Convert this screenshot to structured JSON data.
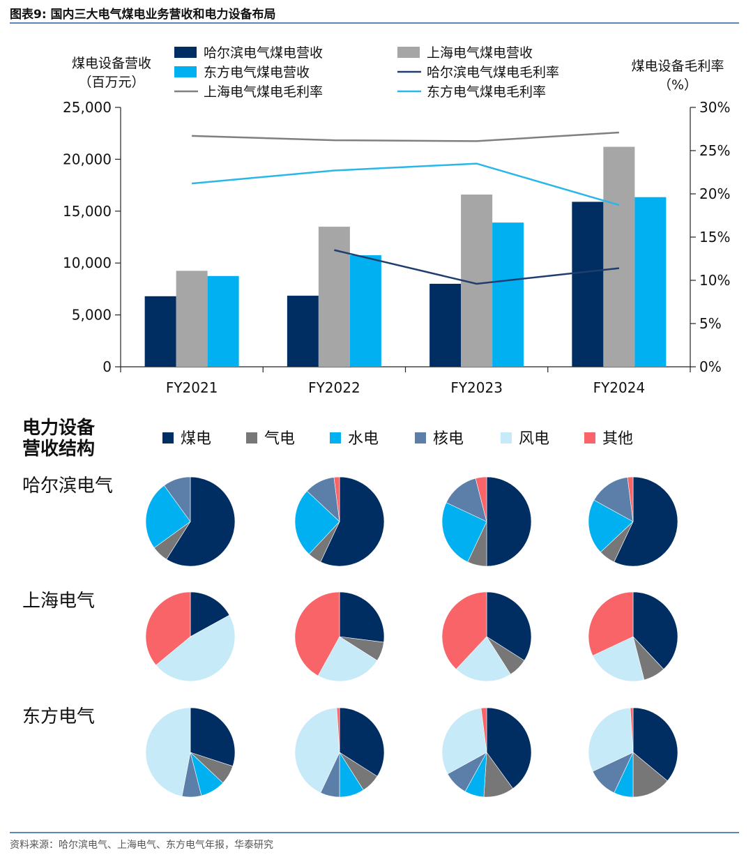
{
  "figure": {
    "title": "图表9:  国内三大电气煤电业务营收和电力设备布局",
    "source": "资料来源：哈尔滨电气、上海电气、东方电气年报，华泰研究"
  },
  "colors": {
    "harbin_rev": "#002d62",
    "shanghai_rev": "#a6a6a6",
    "dongfang_rev": "#00b0f0",
    "harbin_margin": "#1f3e6e",
    "shanghai_margin": "#7f7f7f",
    "dongfang_margin": "#29b6e8",
    "coal": "#002d62",
    "gas": "#777777",
    "hydro": "#00b0f0",
    "nuclear": "#5b7fa8",
    "wind": "#c7eaf8",
    "other": "#f86468"
  },
  "chart_data": [
    {
      "type": "bar",
      "left_axis_label": [
        "煤电设备营收",
        "（百万元）"
      ],
      "right_axis_label": [
        "煤电设备毛利率",
        "（%）"
      ],
      "categories": [
        "FY2021",
        "FY2022",
        "FY2023",
        "FY2024"
      ],
      "ylim": [
        0,
        25000
      ],
      "yticks": [
        0,
        5000,
        10000,
        15000,
        20000,
        25000
      ],
      "yticklabels": [
        "0",
        "5,000",
        "10,000",
        "15,000",
        "20,000",
        "25,000"
      ],
      "y2lim": [
        0,
        30
      ],
      "y2ticks": [
        0,
        5,
        10,
        15,
        20,
        25,
        30
      ],
      "y2ticklabels": [
        "0%",
        "5%",
        "10%",
        "15%",
        "20%",
        "25%",
        "30%"
      ],
      "grid": false,
      "legend_position": "top",
      "bar_series": [
        {
          "name": "哈尔滨电气煤电营收",
          "color_key": "harbin_rev",
          "values": [
            6800,
            6850,
            8000,
            15900
          ]
        },
        {
          "name": "上海电气煤电营收",
          "color_key": "shanghai_rev",
          "values": [
            9250,
            13500,
            16600,
            21200
          ]
        },
        {
          "name": "东方电气煤电营收",
          "color_key": "dongfang_rev",
          "values": [
            8750,
            10750,
            13900,
            16350
          ]
        }
      ],
      "line_series": [
        {
          "name": "哈尔滨电气煤电毛利率",
          "color_key": "harbin_margin",
          "values": [
            null,
            13.5,
            9.6,
            11.4
          ]
        },
        {
          "name": "上海电气煤电毛利率",
          "color_key": "shanghai_margin",
          "values": [
            26.7,
            26.2,
            26.1,
            27.1
          ]
        },
        {
          "name": "东方电气煤电毛利率",
          "color_key": "dongfang_margin",
          "values": [
            21.2,
            22.7,
            23.5,
            18.7
          ]
        }
      ],
      "legend_order": [
        "哈尔滨电气煤电营收",
        "上海电气煤电营收",
        "东方电气煤电营收",
        "哈尔滨电气煤电毛利率",
        "上海电气煤电毛利率",
        "东方电气煤电毛利率"
      ]
    },
    {
      "type": "pie",
      "section_title": [
        "电力设备",
        "营收结构"
      ],
      "categories": [
        "煤电",
        "气电",
        "水电",
        "核电",
        "风电",
        "其他"
      ],
      "category_keys": [
        "coal",
        "gas",
        "hydro",
        "nuclear",
        "wind",
        "other"
      ],
      "columns": [
        "FY2021",
        "FY2022",
        "FY2023",
        "FY2024"
      ],
      "companies": [
        {
          "name": "哈尔滨电气",
          "pies": [
            [
              59,
              6,
              25,
              10,
              0,
              0
            ],
            [
              57,
              5,
              25,
              11,
              0,
              2
            ],
            [
              50,
              7,
              25,
              14,
              0,
              4
            ],
            [
              57,
              6,
              20,
              15,
              0,
              2
            ]
          ]
        },
        {
          "name": "上海电气",
          "pies": [
            [
              17,
              0,
              0,
              0,
              47,
              36
            ],
            [
              27,
              7,
              0,
              0,
              24,
              42
            ],
            [
              34,
              7,
              0,
              0,
              21,
              38
            ],
            [
              38,
              8,
              0,
              0,
              22,
              32
            ]
          ]
        },
        {
          "name": "东方电气",
          "pies": [
            [
              30,
              7,
              9,
              7,
              47,
              0
            ],
            [
              34,
              7,
              9,
              7,
              42,
              1
            ],
            [
              40,
              11,
              7,
              9,
              31,
              2
            ],
            [
              36,
              14,
              7,
              11,
              31,
              1
            ]
          ]
        }
      ]
    }
  ]
}
